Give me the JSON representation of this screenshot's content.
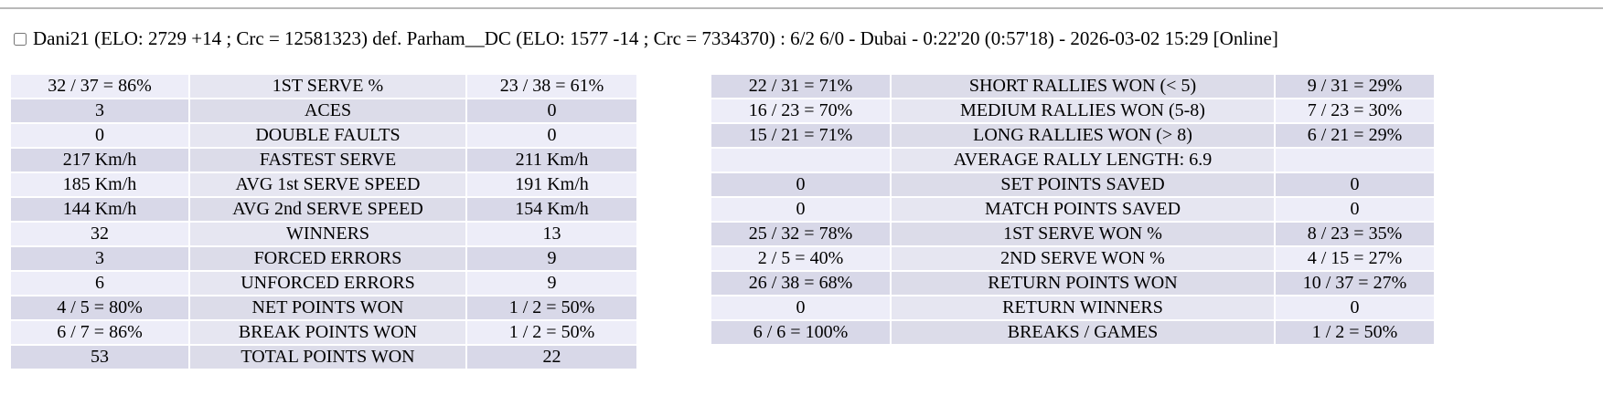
{
  "header": {
    "checkbox_checked": false,
    "match_summary": "Dani21 (ELO: 2729 +14 ; Crc = 12581323) def. Parham__DC (ELO: 1577 -14 ; Crc = 7334370) : 6/2 6/0 - Dubai - 0:22'20 (0:57'18) - 2026-03-02 15:29 [Online]"
  },
  "colors": {
    "row_light": "#ededf8",
    "row_light_label": "#e6e6f1",
    "row_dark": "#d8d8e8",
    "row_dark_label": "#dcdce9",
    "page_background": "#ffffff",
    "text": "#000000",
    "rule": "#b9b9b9"
  },
  "stats_left": {
    "rows": [
      {
        "p1": "32 / 37 = 86%",
        "label": "1ST SERVE %",
        "p2": "23 / 38 = 61%"
      },
      {
        "p1": "3",
        "label": "ACES",
        "p2": "0"
      },
      {
        "p1": "0",
        "label": "DOUBLE FAULTS",
        "p2": "0"
      },
      {
        "p1": "217 Km/h",
        "label": "FASTEST SERVE",
        "p2": "211 Km/h"
      },
      {
        "p1": "185 Km/h",
        "label": "AVG 1st SERVE SPEED",
        "p2": "191 Km/h"
      },
      {
        "p1": "144 Km/h",
        "label": "AVG 2nd SERVE SPEED",
        "p2": "154 Km/h"
      },
      {
        "p1": "32",
        "label": "WINNERS",
        "p2": "13"
      },
      {
        "p1": "3",
        "label": "FORCED ERRORS",
        "p2": "9"
      },
      {
        "p1": "6",
        "label": "UNFORCED ERRORS",
        "p2": "9"
      },
      {
        "p1": "4 / 5 = 80%",
        "label": "NET POINTS WON",
        "p2": "1 / 2 = 50%"
      },
      {
        "p1": "6 / 7 = 86%",
        "label": "BREAK POINTS WON",
        "p2": "1 / 2 = 50%"
      },
      {
        "p1": "53",
        "label": "TOTAL POINTS WON",
        "p2": "22"
      }
    ]
  },
  "stats_right": {
    "rows": [
      {
        "p1": "22 / 31 = 71%",
        "label": "SHORT RALLIES WON (< 5)",
        "p2": "9 / 31 = 29%"
      },
      {
        "p1": "16 / 23 = 70%",
        "label": "MEDIUM RALLIES WON (5-8)",
        "p2": "7 / 23 = 30%"
      },
      {
        "p1": "15 / 21 = 71%",
        "label": "LONG RALLIES WON (> 8)",
        "p2": "6 / 21 = 29%"
      },
      {
        "p1": "",
        "label": "AVERAGE RALLY LENGTH: 6.9",
        "p2": ""
      },
      {
        "p1": "0",
        "label": "SET POINTS SAVED",
        "p2": "0"
      },
      {
        "p1": "0",
        "label": "MATCH POINTS SAVED",
        "p2": "0"
      },
      {
        "p1": "25 / 32 = 78%",
        "label": "1ST SERVE WON %",
        "p2": "8 / 23 = 35%"
      },
      {
        "p1": "2 / 5 = 40%",
        "label": "2ND SERVE WON %",
        "p2": "4 / 15 = 27%"
      },
      {
        "p1": "26 / 38 = 68%",
        "label": "RETURN POINTS WON",
        "p2": "10 / 37 = 27%"
      },
      {
        "p1": "0",
        "label": "RETURN WINNERS",
        "p2": "0"
      },
      {
        "p1": "6 / 6 = 100%",
        "label": "BREAKS / GAMES",
        "p2": "1 / 2 = 50%"
      }
    ]
  }
}
